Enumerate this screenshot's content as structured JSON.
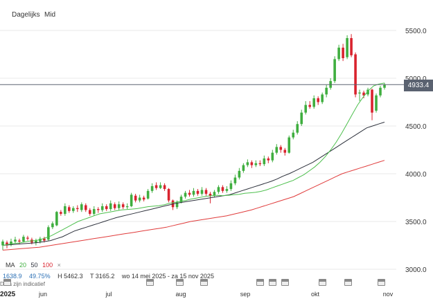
{
  "toolbar": {
    "timeframe": "Dagelijks",
    "price_type": "Mid"
  },
  "price_tag": "4933.4",
  "legend": {
    "ma_label": "MA",
    "ma1": "20",
    "ma2": "50",
    "ma3": "100",
    "close_symbol": "×"
  },
  "stats": {
    "change": "1638.9",
    "change_pct": "49.75%",
    "high": "H 5462.3",
    "low": "T 3165.2",
    "range": "wo 14 mei 2025 - za 15 nov 2025"
  },
  "note": "Data zijn indicatief",
  "year": "2025",
  "colors": {
    "up": "#3fae3f",
    "down": "#d9232e",
    "ma20": "#4cbf4c",
    "ma50": "#2b2f3a",
    "ma100": "#e03a3a",
    "grid": "#e8e8e8"
  },
  "chart_data": {
    "type": "candlestick",
    "ylim": [
      3000,
      5800
    ],
    "y_ticks": [
      3000.0,
      3500.0,
      4000.0,
      4500.0,
      5000.0,
      5500.0
    ],
    "x_ticks": [
      "jun",
      "jul",
      "aug",
      "sep",
      "okt",
      "nov"
    ],
    "candles": [
      [
        3250,
        3290,
        3310,
        3200
      ],
      [
        3280,
        3250,
        3300,
        3220
      ],
      [
        3260,
        3290,
        3320,
        3240
      ],
      [
        3290,
        3310,
        3340,
        3270
      ],
      [
        3300,
        3290,
        3320,
        3260
      ],
      [
        3290,
        3340,
        3360,
        3280
      ],
      [
        3330,
        3320,
        3350,
        3300
      ],
      [
        3310,
        3280,
        3330,
        3260
      ],
      [
        3280,
        3300,
        3320,
        3250
      ],
      [
        3290,
        3320,
        3340,
        3270
      ],
      [
        3320,
        3300,
        3340,
        3280
      ],
      [
        3310,
        3440,
        3460,
        3300
      ],
      [
        3440,
        3480,
        3500,
        3420
      ],
      [
        3460,
        3600,
        3610,
        3450
      ],
      [
        3600,
        3580,
        3620,
        3560
      ],
      [
        3580,
        3660,
        3690,
        3560
      ],
      [
        3650,
        3610,
        3670,
        3590
      ],
      [
        3610,
        3640,
        3660,
        3590
      ],
      [
        3640,
        3630,
        3670,
        3600
      ],
      [
        3620,
        3680,
        3700,
        3600
      ],
      [
        3670,
        3620,
        3690,
        3600
      ],
      [
        3620,
        3580,
        3640,
        3560
      ],
      [
        3580,
        3630,
        3660,
        3560
      ],
      [
        3630,
        3620,
        3650,
        3590
      ],
      [
        3620,
        3660,
        3690,
        3600
      ],
      [
        3660,
        3630,
        3680,
        3610
      ],
      [
        3630,
        3690,
        3720,
        3610
      ],
      [
        3680,
        3640,
        3700,
        3620
      ],
      [
        3640,
        3680,
        3710,
        3620
      ],
      [
        3680,
        3650,
        3700,
        3630
      ],
      [
        3650,
        3660,
        3690,
        3630
      ],
      [
        3660,
        3780,
        3800,
        3650
      ],
      [
        3770,
        3720,
        3790,
        3700
      ],
      [
        3720,
        3750,
        3780,
        3700
      ],
      [
        3750,
        3730,
        3770,
        3710
      ],
      [
        3740,
        3820,
        3840,
        3730
      ],
      [
        3820,
        3870,
        3900,
        3800
      ],
      [
        3880,
        3850,
        3910,
        3830
      ],
      [
        3850,
        3880,
        3910,
        3840
      ],
      [
        3880,
        3840,
        3900,
        3820
      ],
      [
        3840,
        3720,
        3850,
        3700
      ],
      [
        3720,
        3650,
        3730,
        3620
      ],
      [
        3650,
        3700,
        3720,
        3630
      ],
      [
        3700,
        3760,
        3780,
        3690
      ],
      [
        3760,
        3800,
        3820,
        3740
      ],
      [
        3800,
        3780,
        3830,
        3760
      ],
      [
        3780,
        3820,
        3850,
        3760
      ],
      [
        3820,
        3790,
        3840,
        3770
      ],
      [
        3790,
        3830,
        3860,
        3770
      ],
      [
        3830,
        3790,
        3850,
        3770
      ],
      [
        3790,
        3770,
        3810,
        3690
      ],
      [
        3770,
        3810,
        3830,
        3750
      ],
      [
        3810,
        3860,
        3880,
        3790
      ],
      [
        3860,
        3820,
        3880,
        3800
      ],
      [
        3820,
        3840,
        3870,
        3800
      ],
      [
        3840,
        3900,
        3930,
        3820
      ],
      [
        3900,
        3960,
        3990,
        3880
      ],
      [
        3960,
        4030,
        4060,
        3940
      ],
      [
        4030,
        4090,
        4110,
        4010
      ],
      [
        4090,
        4120,
        4150,
        4070
      ],
      [
        4120,
        4090,
        4140,
        4060
      ],
      [
        4090,
        4110,
        4140,
        4070
      ],
      [
        4110,
        4100,
        4140,
        4080
      ],
      [
        4100,
        4160,
        4190,
        4080
      ],
      [
        4160,
        4140,
        4180,
        4110
      ],
      [
        4140,
        4220,
        4250,
        4120
      ],
      [
        4220,
        4280,
        4310,
        4200
      ],
      [
        4280,
        4250,
        4300,
        4220
      ],
      [
        4250,
        4220,
        4270,
        4190
      ],
      [
        4220,
        4380,
        4400,
        4210
      ],
      [
        4380,
        4430,
        4460,
        4360
      ],
      [
        4430,
        4520,
        4550,
        4410
      ],
      [
        4520,
        4640,
        4670,
        4500
      ],
      [
        4640,
        4720,
        4760,
        4620
      ],
      [
        4720,
        4700,
        4760,
        4680
      ],
      [
        4700,
        4790,
        4820,
        4680
      ],
      [
        4790,
        4750,
        4810,
        4720
      ],
      [
        4750,
        4830,
        4850,
        4730
      ],
      [
        4830,
        4900,
        4930,
        4800
      ],
      [
        4900,
        4970,
        5000,
        4880
      ],
      [
        4970,
        5200,
        5230,
        4950
      ],
      [
        5200,
        5320,
        5350,
        5180
      ],
      [
        5320,
        5210,
        5360,
        5180
      ],
      [
        5220,
        5420,
        5450,
        5200
      ],
      [
        5420,
        5240,
        5462,
        5220
      ],
      [
        5250,
        4830,
        5270,
        4800
      ],
      [
        4840,
        4850,
        4880,
        4760
      ],
      [
        4850,
        4820,
        4870,
        4790
      ],
      [
        4830,
        4880,
        4900,
        4810
      ],
      [
        4880,
        4640,
        4890,
        4560
      ],
      [
        4660,
        4820,
        4840,
        4640
      ],
      [
        4820,
        4900,
        4920,
        4800
      ],
      [
        4900,
        4933,
        4950,
        4880
      ]
    ],
    "ma20": [
      3250,
      3260,
      3270,
      3275,
      3285,
      3295,
      3300,
      3310,
      3330,
      3350,
      3380,
      3410,
      3440,
      3470,
      3500,
      3520,
      3540,
      3560,
      3580,
      3590,
      3600,
      3610,
      3620,
      3625,
      3630,
      3635,
      3645,
      3655,
      3660,
      3665,
      3675,
      3690,
      3700,
      3710,
      3720,
      3735,
      3745,
      3755,
      3765,
      3770,
      3775,
      3770,
      3775,
      3780,
      3785,
      3795,
      3800,
      3805,
      3815,
      3830,
      3850,
      3870,
      3890,
      3910,
      3930,
      3960,
      3990,
      4030,
      4070,
      4120,
      4180,
      4250,
      4330,
      4420,
      4520,
      4620,
      4720,
      4800,
      4870,
      4920,
      4940,
      4950
    ],
    "ma50": [
      3250,
      3255,
      3260,
      3265,
      3270,
      3275,
      3280,
      3290,
      3300,
      3320,
      3340,
      3370,
      3400,
      3420,
      3440,
      3460,
      3480,
      3500,
      3520,
      3540,
      3555,
      3570,
      3585,
      3600,
      3615,
      3630,
      3645,
      3660,
      3675,
      3690,
      3700,
      3710,
      3720,
      3730,
      3740,
      3750,
      3760,
      3770,
      3780,
      3800,
      3820,
      3840,
      3860,
      3880,
      3900,
      3920,
      3945,
      3975,
      4000,
      4030,
      4060,
      4090,
      4120,
      4160,
      4200,
      4240,
      4280,
      4320,
      4360,
      4400,
      4440,
      4480,
      4500,
      4520,
      4540
    ],
    "ma100": [
      3200,
      3205,
      3210,
      3215,
      3220,
      3225,
      3230,
      3240,
      3250,
      3260,
      3270,
      3280,
      3290,
      3300,
      3310,
      3320,
      3330,
      3340,
      3350,
      3360,
      3370,
      3380,
      3390,
      3400,
      3410,
      3420,
      3430,
      3440,
      3455,
      3470,
      3485,
      3500,
      3510,
      3520,
      3530,
      3540,
      3550,
      3560,
      3575,
      3590,
      3605,
      3620,
      3640,
      3660,
      3680,
      3700,
      3720,
      3740,
      3760,
      3790,
      3820,
      3850,
      3880,
      3910,
      3940,
      3970,
      4000,
      4020,
      4040,
      4060,
      4080,
      4100,
      4120,
      4140
    ],
    "last_price_line": 4933.4
  }
}
